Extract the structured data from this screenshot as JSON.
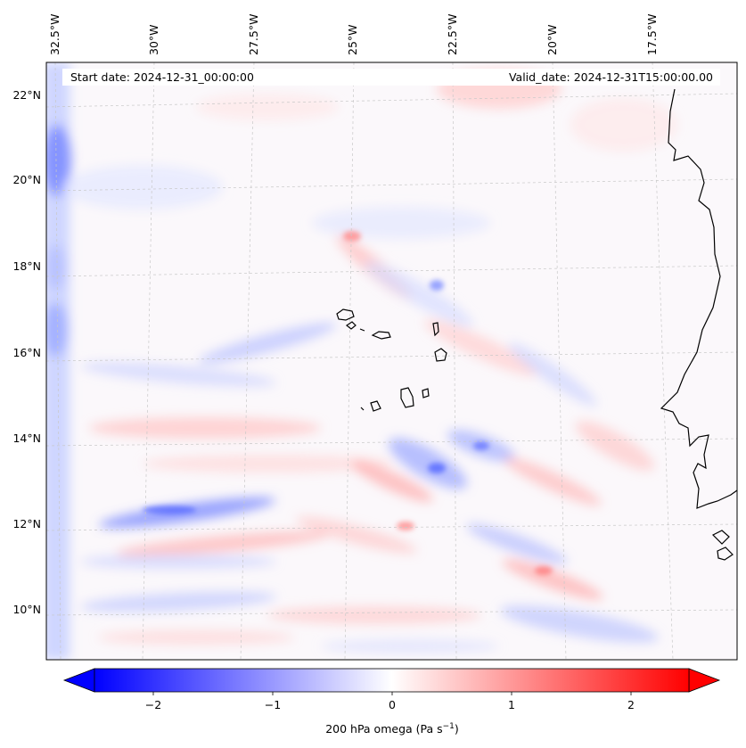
{
  "header": {
    "start_date": "Start date: 2024-12-31_00:00:00",
    "valid_date": "Valid_date: 2024-12-31T15:00:00.00"
  },
  "axes": {
    "lon_labels": [
      "32.5°W",
      "30°W",
      "27.5°W",
      "25°W",
      "22.5°W",
      "20°W",
      "17.5°W"
    ],
    "lat_labels": [
      "22°N",
      "20°N",
      "18°N",
      "16°N",
      "14°N",
      "12°N",
      "10°N"
    ]
  },
  "colorbar": {
    "ticks": [
      "−2",
      "−1",
      "0",
      "1",
      "2"
    ],
    "label_main": "200 hPa omega (Pa s",
    "label_sup": "−1",
    "label_end": ")",
    "range": [
      -2.6,
      2.6
    ],
    "colormap": "bwr",
    "extend": "both"
  },
  "colors": {
    "negative": "#0000ff",
    "neutral": "#ffffff",
    "positive": "#ff0000",
    "coastline": "#000000",
    "gridline": "#c8c8c8"
  }
}
